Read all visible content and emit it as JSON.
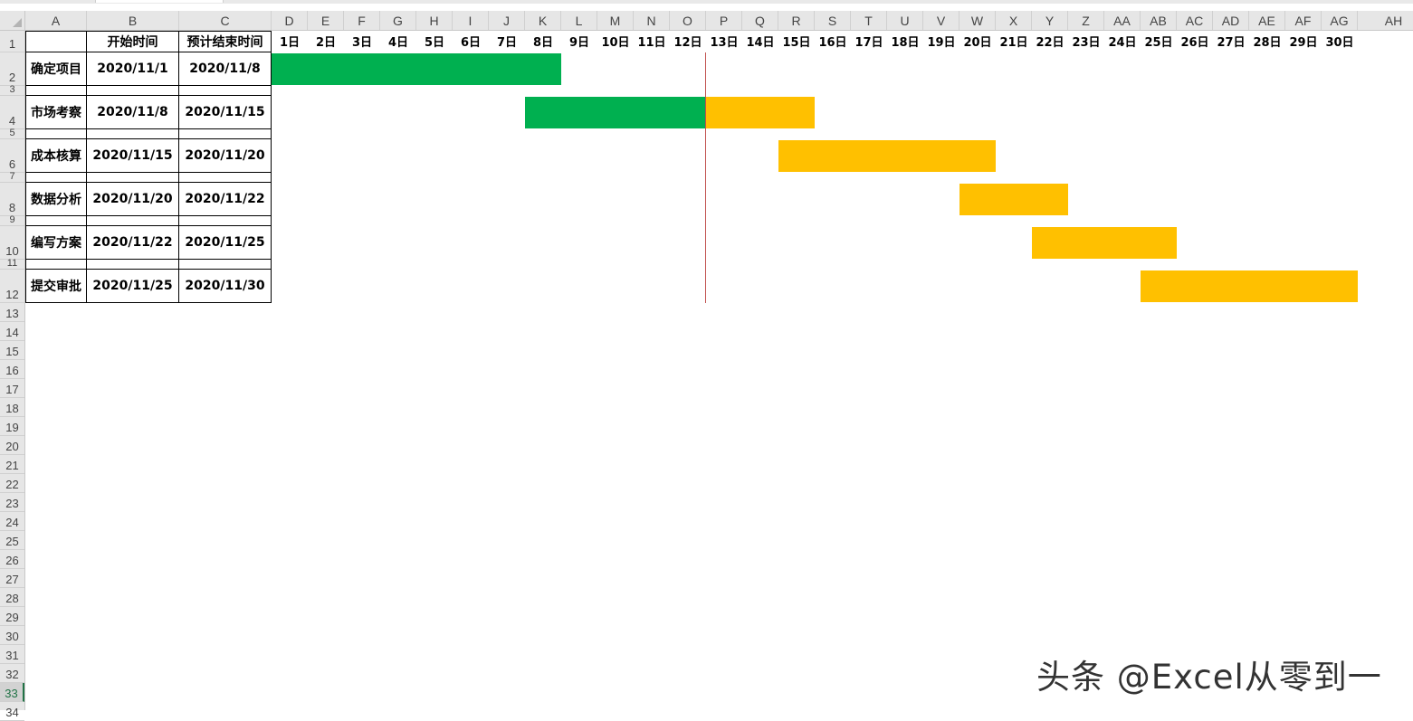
{
  "columns": [
    "A",
    "B",
    "C",
    "D",
    "E",
    "F",
    "G",
    "H",
    "I",
    "J",
    "K",
    "L",
    "M",
    "N",
    "O",
    "P",
    "Q",
    "R",
    "S",
    "T",
    "U",
    "V",
    "W",
    "X",
    "Y",
    "Z",
    "AA",
    "AB",
    "AC",
    "AD",
    "AE",
    "AF",
    "AG",
    "AH"
  ],
  "rows": [
    "1",
    "2",
    "3",
    "4",
    "5",
    "6",
    "7",
    "8",
    "9",
    "10",
    "11",
    "12",
    "13",
    "14",
    "15",
    "16",
    "17",
    "18",
    "19",
    "20",
    "21",
    "22",
    "23",
    "24",
    "25",
    "26",
    "27",
    "28",
    "29",
    "30",
    "31",
    "32",
    "33",
    "34"
  ],
  "active_row": "33",
  "header": {
    "start": "开始时间",
    "end": "预计结束时间"
  },
  "days": [
    "1日",
    "2日",
    "3日",
    "4日",
    "5日",
    "6日",
    "7日",
    "8日",
    "9日",
    "10日",
    "11日",
    "12日",
    "13日",
    "14日",
    "15日",
    "16日",
    "17日",
    "18日",
    "19日",
    "20日",
    "21日",
    "22日",
    "23日",
    "24日",
    "25日",
    "26日",
    "27日",
    "28日",
    "29日",
    "30日"
  ],
  "tasks": [
    {
      "name": "确定项目",
      "start": "2020/11/1",
      "end": "2020/11/8"
    },
    {
      "name": "市场考察",
      "start": "2020/11/8",
      "end": "2020/11/15"
    },
    {
      "name": "成本核算",
      "start": "2020/11/15",
      "end": "2020/11/20"
    },
    {
      "name": "数据分析",
      "start": "2020/11/20",
      "end": "2020/11/22"
    },
    {
      "name": "编写方案",
      "start": "2020/11/22",
      "end": "2020/11/25"
    },
    {
      "name": "提交审批",
      "start": "2020/11/25",
      "end": "2020/11/30"
    }
  ],
  "today_day": 13,
  "colors": {
    "done": "#00b050",
    "remaining": "#ffc000",
    "today_line": "#c0504d"
  },
  "watermark": "头条 @Excel从零到一"
}
